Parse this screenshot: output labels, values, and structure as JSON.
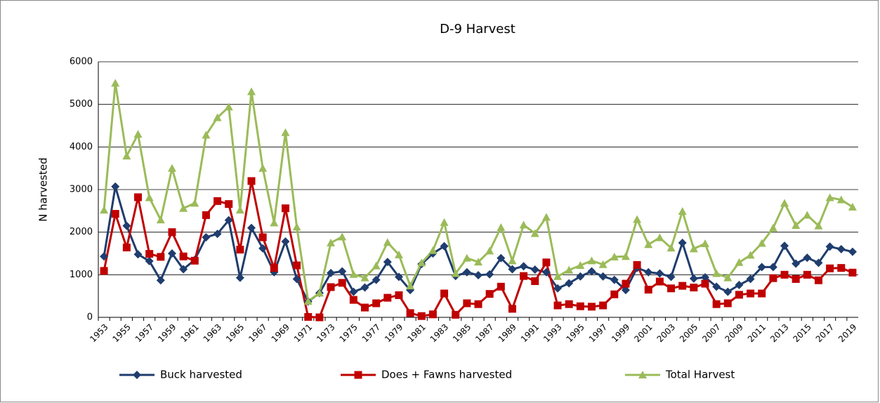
{
  "chart_data": {
    "type": "line",
    "title": "D-9 Harvest",
    "ylabel": "N harvested",
    "categories": [
      "1953",
      null,
      "1955",
      null,
      "1957",
      null,
      "1959",
      null,
      "1961",
      null,
      "1963",
      null,
      "1965",
      null,
      "1967",
      null,
      "1969",
      null,
      "1971",
      null,
      "1973",
      null,
      "1975",
      null,
      "1977",
      null,
      "1979",
      null,
      "1981",
      null,
      "1983",
      null,
      "1985",
      null,
      "1987",
      null,
      "1989",
      null,
      "1991",
      null,
      "1993",
      null,
      "1995",
      null,
      "1997",
      null,
      "1999",
      null,
      "2001",
      null,
      "2003",
      null,
      "2005",
      null,
      "2007",
      null,
      "2009",
      null,
      "2011",
      null,
      "2013",
      null,
      "2015",
      null,
      "2017",
      null,
      "2019"
    ],
    "series": [
      {
        "name": "Buck harvested",
        "color": "#1f3d6e",
        "marker": "diamond",
        "values": [
          1430,
          3070,
          2150,
          1480,
          1320,
          870,
          1500,
          1130,
          1350,
          1880,
          1960,
          2280,
          930,
          2100,
          1620,
          1060,
          1780,
          900,
          370,
          570,
          1040,
          1080,
          600,
          700,
          880,
          1300,
          950,
          640,
          1250,
          1500,
          1670,
          970,
          1060,
          990,
          1010,
          1390,
          1130,
          1200,
          1120,
          1060,
          680,
          800,
          960,
          1080,
          960,
          880,
          640,
          1160,
          1060,
          1030,
          950,
          1750,
          910,
          940,
          720,
          600,
          760,
          900,
          1180,
          1180,
          1680,
          1260,
          1400,
          1280,
          1660,
          1600,
          1540
        ]
      },
      {
        "name": "Does + Fawns harvested",
        "color": "#c00000",
        "marker": "square",
        "values": [
          1090,
          2430,
          1640,
          2820,
          1490,
          1420,
          2000,
          1430,
          1330,
          2400,
          2730,
          2660,
          1590,
          3200,
          1880,
          1160,
          2560,
          1220,
          10,
          0,
          710,
          810,
          410,
          230,
          330,
          460,
          520,
          100,
          30,
          70,
          560,
          60,
          330,
          310,
          550,
          720,
          200,
          970,
          850,
          1290,
          280,
          310,
          260,
          250,
          280,
          540,
          790,
          1230,
          650,
          840,
          680,
          740,
          700,
          790,
          310,
          330,
          530,
          560,
          560,
          920,
          1000,
          900,
          1000,
          870,
          1150,
          1160,
          1050
        ]
      },
      {
        "name": "Total Harvest",
        "color": "#9bbb59",
        "marker": "triangle",
        "values": [
          2520,
          5500,
          3790,
          4300,
          2810,
          2290,
          3500,
          2560,
          2680,
          4280,
          4690,
          4940,
          2520,
          5300,
          3500,
          2220,
          4340,
          2120,
          380,
          570,
          1750,
          1890,
          1010,
          930,
          1210,
          1760,
          1470,
          740,
          1280,
          1570,
          2230,
          1030,
          1390,
          1300,
          1560,
          2110,
          1330,
          2170,
          1970,
          2350,
          960,
          1110,
          1220,
          1330,
          1240,
          1420,
          1430,
          2300,
          1710,
          1870,
          1630,
          2490,
          1610,
          1730,
          1030,
          930,
          1290,
          1460,
          1740,
          2100,
          2680,
          2160,
          2400,
          2150,
          2810,
          2760,
          2590
        ]
      }
    ],
    "ylim": [
      0,
      6000
    ],
    "yticks": [
      0,
      1000,
      2000,
      3000,
      4000,
      5000,
      6000
    ],
    "grid": true,
    "legend": "bottom"
  }
}
